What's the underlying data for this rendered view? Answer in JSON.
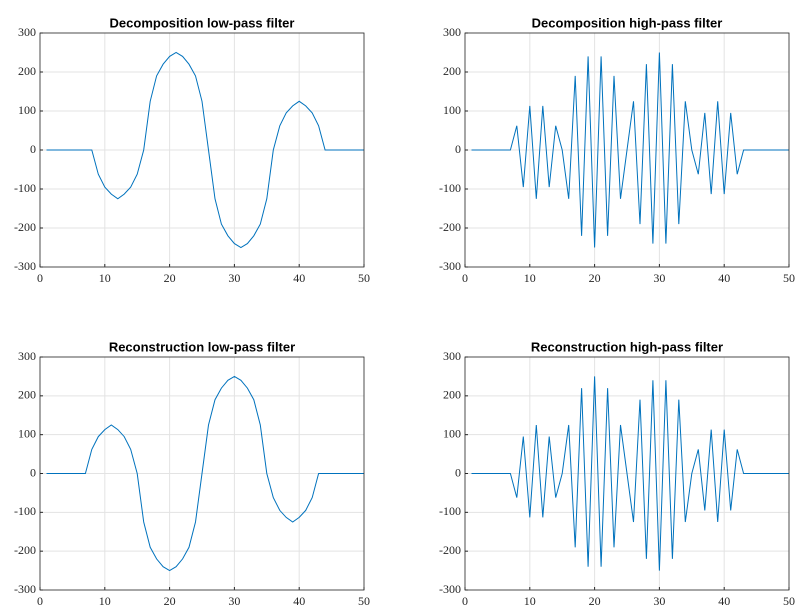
{
  "chart_data": [
    {
      "type": "line",
      "title": "Decomposition low-pass filter",
      "color": "#0072bd",
      "grid": true,
      "xlim": [
        0,
        50
      ],
      "ylim": [
        -300,
        300
      ],
      "xticks": [
        0,
        10,
        20,
        30,
        40,
        50
      ],
      "yticks": [
        -300,
        -200,
        -100,
        0,
        100,
        200,
        300
      ],
      "x": [
        1,
        2,
        3,
        4,
        5,
        6,
        7,
        8,
        9,
        10,
        11,
        12,
        13,
        14,
        15,
        16,
        17,
        18,
        19,
        20,
        21,
        22,
        23,
        24,
        25,
        26,
        27,
        28,
        29,
        30,
        31,
        32,
        33,
        34,
        35,
        36,
        37,
        38,
        39,
        40,
        41,
        42,
        43,
        44,
        45,
        46,
        47,
        48,
        49,
        50
      ],
      "values": [
        0,
        0,
        0,
        0,
        0,
        0,
        0,
        0,
        -62,
        -95,
        -113,
        -125,
        -113,
        -95,
        -62,
        0,
        125,
        190,
        220,
        240,
        250,
        240,
        220,
        190,
        125,
        0,
        -125,
        -190,
        -220,
        -240,
        -250,
        -240,
        -220,
        -190,
        -125,
        0,
        62,
        95,
        113,
        125,
        113,
        95,
        62,
        0,
        0,
        0,
        0,
        0,
        0,
        0
      ]
    },
    {
      "type": "line",
      "title": "Decomposition high-pass filter",
      "color": "#0072bd",
      "grid": true,
      "xlim": [
        0,
        50
      ],
      "ylim": [
        -300,
        300
      ],
      "xticks": [
        0,
        10,
        20,
        30,
        40,
        50
      ],
      "yticks": [
        -300,
        -200,
        -100,
        0,
        100,
        200,
        300
      ],
      "x": [
        1,
        2,
        3,
        4,
        5,
        6,
        7,
        8,
        9,
        10,
        11,
        12,
        13,
        14,
        15,
        16,
        17,
        18,
        19,
        20,
        21,
        22,
        23,
        24,
        25,
        26,
        27,
        28,
        29,
        30,
        31,
        32,
        33,
        34,
        35,
        36,
        37,
        38,
        39,
        40,
        41,
        42,
        43,
        44,
        45,
        46,
        47,
        48,
        49,
        50
      ],
      "values": [
        0,
        0,
        0,
        0,
        0,
        0,
        0,
        62,
        -95,
        113,
        -125,
        113,
        -95,
        62,
        0,
        -125,
        190,
        -220,
        240,
        -250,
        240,
        -220,
        190,
        -125,
        0,
        125,
        -190,
        220,
        -240,
        250,
        -240,
        220,
        -190,
        125,
        0,
        -62,
        95,
        -113,
        125,
        -113,
        95,
        -62,
        0,
        0,
        0,
        0,
        0,
        0,
        0,
        0
      ]
    },
    {
      "type": "line",
      "title": "Reconstruction low-pass filter",
      "color": "#0072bd",
      "grid": true,
      "xlim": [
        0,
        50
      ],
      "ylim": [
        -300,
        300
      ],
      "xticks": [
        0,
        10,
        20,
        30,
        40,
        50
      ],
      "yticks": [
        -300,
        -200,
        -100,
        0,
        100,
        200,
        300
      ],
      "x": [
        1,
        2,
        3,
        4,
        5,
        6,
        7,
        8,
        9,
        10,
        11,
        12,
        13,
        14,
        15,
        16,
        17,
        18,
        19,
        20,
        21,
        22,
        23,
        24,
        25,
        26,
        27,
        28,
        29,
        30,
        31,
        32,
        33,
        34,
        35,
        36,
        37,
        38,
        39,
        40,
        41,
        42,
        43,
        44,
        45,
        46,
        47,
        48,
        49,
        50
      ],
      "values": [
        0,
        0,
        0,
        0,
        0,
        0,
        0,
        62,
        95,
        113,
        125,
        113,
        95,
        62,
        0,
        -125,
        -190,
        -220,
        -240,
        -250,
        -240,
        -220,
        -190,
        -125,
        0,
        125,
        190,
        220,
        240,
        250,
        240,
        220,
        190,
        125,
        0,
        -62,
        -95,
        -113,
        -125,
        -113,
        -95,
        -62,
        0,
        0,
        0,
        0,
        0,
        0,
        0,
        0
      ]
    },
    {
      "type": "line",
      "title": "Reconstruction high-pass filter",
      "color": "#0072bd",
      "grid": true,
      "xlim": [
        0,
        50
      ],
      "ylim": [
        -300,
        300
      ],
      "xticks": [
        0,
        10,
        20,
        30,
        40,
        50
      ],
      "yticks": [
        -300,
        -200,
        -100,
        0,
        100,
        200,
        300
      ],
      "x": [
        1,
        2,
        3,
        4,
        5,
        6,
        7,
        8,
        9,
        10,
        11,
        12,
        13,
        14,
        15,
        16,
        17,
        18,
        19,
        20,
        21,
        22,
        23,
        24,
        25,
        26,
        27,
        28,
        29,
        30,
        31,
        32,
        33,
        34,
        35,
        36,
        37,
        38,
        39,
        40,
        41,
        42,
        43,
        44,
        45,
        46,
        47,
        48,
        49,
        50
      ],
      "values": [
        0,
        0,
        0,
        0,
        0,
        0,
        0,
        -62,
        95,
        -113,
        125,
        -113,
        95,
        -62,
        0,
        125,
        -190,
        220,
        -240,
        250,
        -240,
        220,
        -190,
        125,
        0,
        -125,
        190,
        -220,
        240,
        -250,
        240,
        -220,
        190,
        -125,
        0,
        62,
        -95,
        113,
        -125,
        113,
        -95,
        62,
        0,
        0,
        0,
        0,
        0,
        0,
        0,
        0
      ]
    }
  ]
}
